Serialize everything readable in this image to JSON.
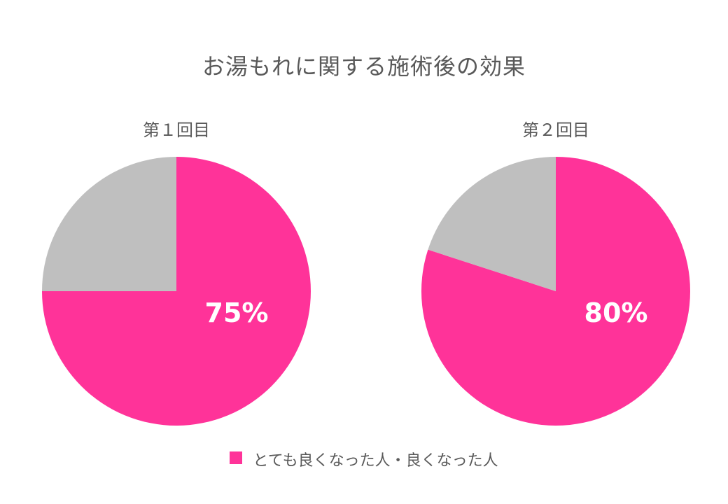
{
  "chart_data": {
    "type": "pie",
    "title": "お湯もれに関する施術後の効果",
    "legend": {
      "position": "bottom",
      "entries": [
        {
          "label": "とても良くなった人・良くなった人",
          "color": "#FF3399"
        }
      ]
    },
    "charts": [
      {
        "title": "第１回目",
        "slices": [
          {
            "label": "とても良くなった人・良くなった人",
            "value": 75,
            "color": "#FF3399",
            "data_label": "75%"
          },
          {
            "label": "",
            "value": 25,
            "color": "#BFBFBF",
            "data_label": ""
          }
        ]
      },
      {
        "title": "第２回目",
        "slices": [
          {
            "label": "とても良くなった人・良くなった人",
            "value": 80,
            "color": "#FF3399",
            "data_label": "80%"
          },
          {
            "label": "",
            "value": 20,
            "color": "#BFBFBF",
            "data_label": ""
          }
        ]
      }
    ]
  }
}
